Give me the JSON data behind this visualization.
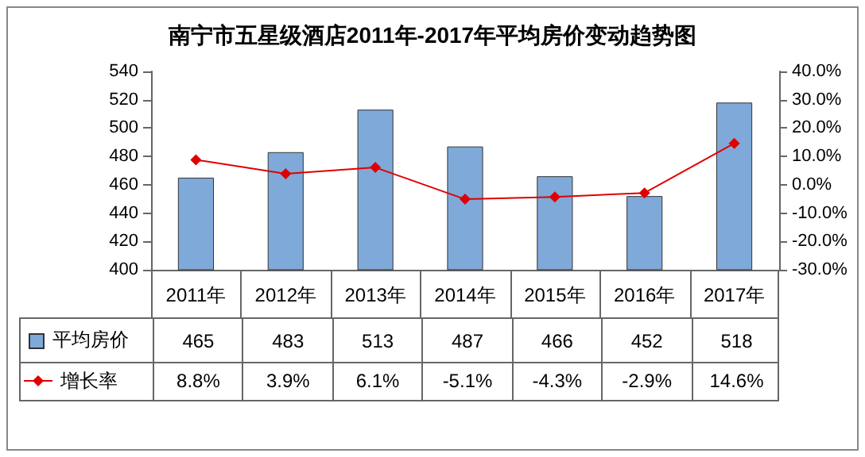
{
  "chart_data": {
    "type": "bar",
    "title": "南宁市五星级酒店2011年-2017年平均房价变动趋势图",
    "categories": [
      "2011年",
      "2012年",
      "2013年",
      "2014年",
      "2015年",
      "2016年",
      "2017年"
    ],
    "series": [
      {
        "name": "平均房价",
        "color": "#7fa9d8",
        "values": [
          465,
          483,
          513,
          487,
          466,
          452,
          518
        ],
        "value_labels": [
          "465",
          "483",
          "513",
          "487",
          "466",
          "452",
          "518"
        ]
      },
      {
        "name": "增长率",
        "type": "line",
        "axis": "y2",
        "color": "#e00000",
        "marker": "diamond",
        "line_style": "solid",
        "values": [
          8.8,
          3.9,
          6.1,
          -5.1,
          -4.3,
          -2.9,
          14.6
        ],
        "value_labels": [
          "8.8%",
          "3.9%",
          "6.1%",
          "-5.1%",
          "-4.3%",
          "-2.9%",
          "14.6%"
        ]
      }
    ],
    "ylim": [
      400,
      540
    ],
    "yticks": [
      400,
      420,
      440,
      460,
      480,
      500,
      520,
      540
    ],
    "y2lim": [
      -30,
      40
    ],
    "y2ticks": [
      {
        "value": -30,
        "label": "-30.0%"
      },
      {
        "value": -20,
        "label": "-20.0%"
      },
      {
        "value": -10,
        "label": "-10.0%"
      },
      {
        "value": 0,
        "label": "0.0%"
      },
      {
        "value": 10,
        "label": "10.0%"
      },
      {
        "value": 20,
        "label": "20.0%"
      },
      {
        "value": 30,
        "label": "30.0%"
      },
      {
        "value": 40,
        "label": "40.0%"
      }
    ],
    "grid": false,
    "legend": "bottom"
  }
}
